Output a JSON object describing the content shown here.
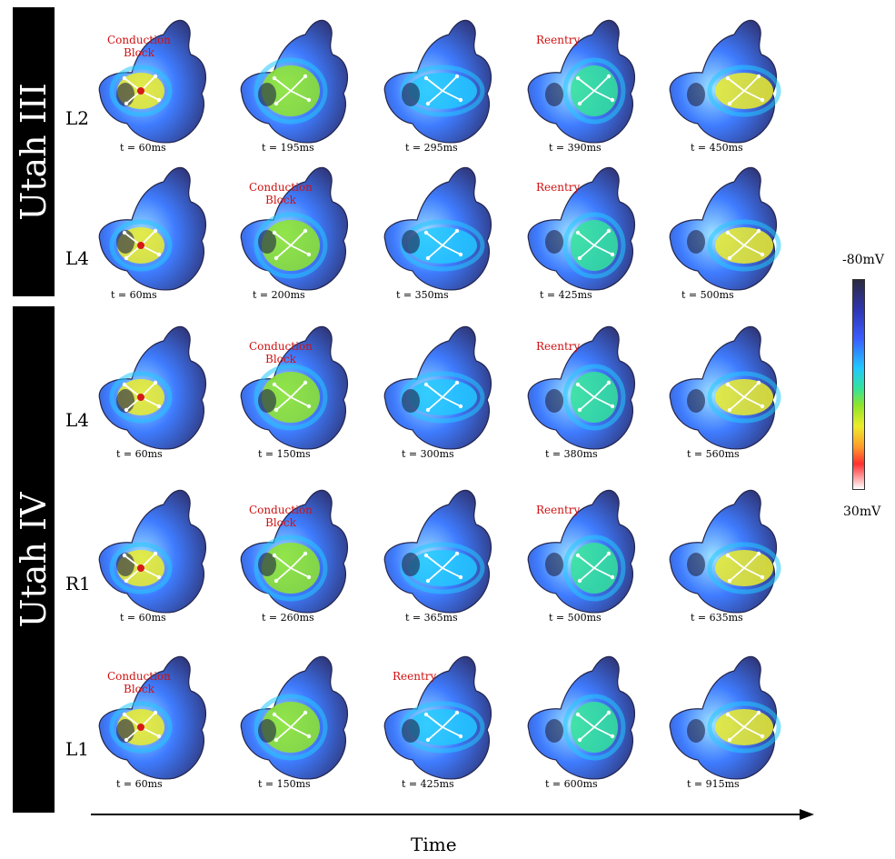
{
  "groups": {
    "utah_iii": "Utah III",
    "utah_iv": "Utah IV"
  },
  "colorbar": {
    "max_label": "-80mV",
    "min_label": "30mV"
  },
  "axis": {
    "label": "Time"
  },
  "colors": {
    "background_tissue": "#3a3f7a",
    "annotation": "#d01010",
    "arrow": "#ffffff",
    "stim_dot": "#d81818"
  },
  "rows": [
    {
      "label": "L2",
      "panels": [
        {
          "time": "t = 60ms",
          "annotation": "Conduction\nBlock"
        },
        {
          "time": "t = 195ms",
          "annotation": ""
        },
        {
          "time": "t = 295ms",
          "annotation": ""
        },
        {
          "time": "t = 390ms",
          "annotation": "Reentry"
        },
        {
          "time": "t = 450ms",
          "annotation": ""
        }
      ]
    },
    {
      "label": "L4",
      "panels": [
        {
          "time": "t = 60ms",
          "annotation": ""
        },
        {
          "time": "t = 200ms",
          "annotation": "Conduction\nBlock"
        },
        {
          "time": "t = 350ms",
          "annotation": ""
        },
        {
          "time": "t = 425ms",
          "annotation": "Reentry"
        },
        {
          "time": "t = 500ms",
          "annotation": ""
        }
      ]
    },
    {
      "label": "L4",
      "panels": [
        {
          "time": "t = 60ms",
          "annotation": ""
        },
        {
          "time": "t = 150ms",
          "annotation": "Conduction\nBlock"
        },
        {
          "time": "t = 300ms",
          "annotation": ""
        },
        {
          "time": "t = 380ms",
          "annotation": "Reentry"
        },
        {
          "time": "t = 560ms",
          "annotation": ""
        }
      ]
    },
    {
      "label": "R1",
      "panels": [
        {
          "time": "t = 60ms",
          "annotation": ""
        },
        {
          "time": "t = 260ms",
          "annotation": "Conduction\nBlock"
        },
        {
          "time": "t = 365ms",
          "annotation": ""
        },
        {
          "time": "t = 500ms",
          "annotation": "Reentry"
        },
        {
          "time": "t = 635ms",
          "annotation": ""
        }
      ]
    },
    {
      "label": "L1",
      "panels": [
        {
          "time": "t = 60ms",
          "annotation": "Conduction\nBlock"
        },
        {
          "time": "t = 150ms",
          "annotation": ""
        },
        {
          "time": "t = 425ms",
          "annotation": "Reentry"
        },
        {
          "time": "t = 600ms",
          "annotation": ""
        },
        {
          "time": "t = 915ms",
          "annotation": ""
        }
      ]
    }
  ]
}
